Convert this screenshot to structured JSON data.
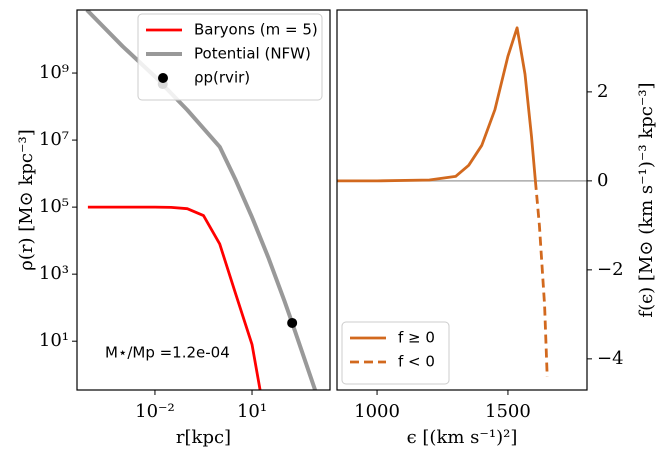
{
  "chart_data": [
    {
      "type": "line",
      "xlabel": "r[kpc]",
      "ylabel": "ρ(r)  [M⊙ kpc⁻³]",
      "xscale": "log",
      "yscale": "log",
      "xlim": [
        3.9e-05,
        2570
      ],
      "ylim": [
        0.35,
        76000000000.0
      ],
      "xticks": [
        {
          "value": 0.01,
          "label": "10⁻²"
        },
        {
          "value": 10,
          "label": "10¹"
        }
      ],
      "yticks": [
        {
          "value": 10,
          "label": "10¹"
        },
        {
          "value": 1000,
          "label": "10³"
        },
        {
          "value": 100000,
          "label": "10⁵"
        },
        {
          "value": 10000000,
          "label": "10⁷"
        },
        {
          "value": 1000000000,
          "label": "10⁹"
        }
      ],
      "legend": "upper right",
      "annotation": "M⋆/Mp =1.2e-04",
      "series": [
        {
          "name": "Baryons (m = 5)",
          "color": "#ff0000",
          "type": "line",
          "x": [
            8.5e-05,
            0.001,
            0.01,
            0.0316,
            0.1,
            0.316,
            1,
            3.16,
            10,
            17.8
          ],
          "values": [
            100000,
            100000,
            100000,
            98000,
            90000,
            56000,
            8000,
            250,
            8,
            0.35
          ]
        },
        {
          "name": "Potential (NFW)",
          "color": "#999999",
          "type": "line",
          "x": [
            7.9e-05,
            0.001,
            0.01,
            0.1,
            1,
            3.16,
            10,
            31.6,
            100,
            174,
            891
          ],
          "values": [
            76000000000.0,
            6300000000.0,
            790000000.0,
            79000000.0,
            6300000.0,
            630000.0,
            50000,
            3200,
            160,
            35,
            0.35
          ]
        },
        {
          "name": "ρp(rvir)",
          "color": "#000000",
          "type": "scatter",
          "x": [
            0.0174,
            174
          ],
          "values": [
            470000000.0,
            35
          ]
        }
      ]
    },
    {
      "type": "line",
      "xlabel": "ϵ  [(km s⁻¹)²]",
      "ylabel": "f(ϵ)  [M⊙ (km s⁻¹)⁻³ kpc⁻³]",
      "xlim": [
        847,
        1802
      ],
      "ylim": [
        -4.7,
        3.84
      ],
      "xticks": [
        1000,
        1500
      ],
      "yticks": [
        {
          "value": -4,
          "label": "−4"
        },
        {
          "value": -2,
          "label": "−2"
        },
        {
          "value": 0,
          "label": "0"
        },
        {
          "value": 2,
          "label": "2"
        }
      ],
      "yaxis_side": "right",
      "hline": 0,
      "legend": "lower left",
      "series": [
        {
          "name": "f ≥ 0",
          "color": "#d2691e",
          "type": "line",
          "dash": false,
          "x": [
            847,
            1000,
            1200,
            1300,
            1350,
            1400,
            1450,
            1500,
            1535,
            1565,
            1590,
            1605
          ],
          "values": [
            0.0,
            0.0,
            0.02,
            0.1,
            0.35,
            0.8,
            1.6,
            2.8,
            3.44,
            2.4,
            1.0,
            0.0
          ]
        },
        {
          "name": "f < 0",
          "color": "#d2691e",
          "type": "line",
          "dash": true,
          "x": [
            1605,
            1620,
            1640,
            1650
          ],
          "values": [
            0.0,
            -1.0,
            -2.8,
            -4.4
          ]
        }
      ]
    }
  ]
}
